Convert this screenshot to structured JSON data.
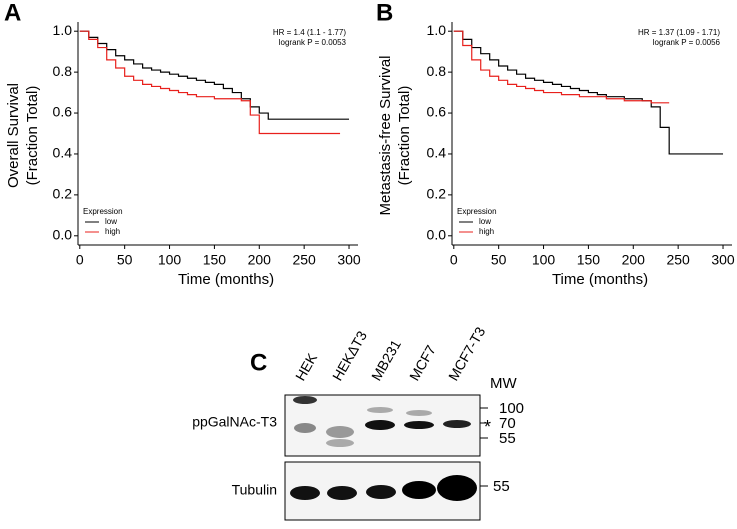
{
  "chart_data": [
    {
      "type": "step",
      "panel": "A",
      "ylabel": [
        "Overall Survival",
        "(Fraction Total)"
      ],
      "xlabel": "Time (months)",
      "annotations": [
        "HR = 1.4 (1.1 - 1.77)",
        "logrank P = 0.0053"
      ],
      "legend_title": "Expression",
      "legend": "lower left",
      "x": [
        0,
        10,
        20,
        30,
        40,
        50,
        60,
        70,
        80,
        90,
        100,
        110,
        120,
        130,
        140,
        150,
        160,
        170,
        180,
        190,
        200,
        210,
        220,
        230,
        240,
        250,
        260,
        270,
        280,
        290,
        300
      ],
      "series": [
        {
          "name": "low",
          "color": "#000000",
          "values": [
            1.0,
            0.97,
            0.94,
            0.91,
            0.88,
            0.86,
            0.84,
            0.82,
            0.81,
            0.8,
            0.79,
            0.78,
            0.77,
            0.76,
            0.75,
            0.74,
            0.72,
            0.7,
            0.67,
            0.63,
            0.6,
            0.57,
            0.57,
            0.57,
            0.57,
            0.57,
            0.57,
            0.57,
            0.57,
            0.57,
            0.57
          ]
        },
        {
          "name": "high",
          "color": "#e8201c",
          "values": [
            1.0,
            0.96,
            0.92,
            0.86,
            0.82,
            0.78,
            0.76,
            0.74,
            0.73,
            0.72,
            0.71,
            0.7,
            0.69,
            0.68,
            0.68,
            0.67,
            0.67,
            0.67,
            0.66,
            0.59,
            0.5,
            0.5,
            0.5,
            0.5,
            0.5,
            0.5,
            0.5,
            0.5,
            0.5,
            0.5,
            null
          ]
        }
      ],
      "xlim": [
        -2,
        310
      ],
      "ylim": [
        -0.045,
        1.045
      ],
      "xticks": [
        0,
        50,
        100,
        150,
        200,
        250,
        300
      ],
      "yticks": [
        {
          "value": 0,
          "label": "0.0"
        },
        0.2,
        0.4,
        0.6,
        0.8,
        {
          "value": 1,
          "label": "1.0"
        }
      ]
    },
    {
      "type": "step",
      "panel": "B",
      "ylabel": [
        "Metastasis-free Survival",
        "(Fraction Total)"
      ],
      "xlabel": "Time (months)",
      "annotations": [
        "HR = 1.37 (1.09 - 1.71)",
        "logrank P = 0.0056"
      ],
      "legend_title": "Expression",
      "legend": "lower left",
      "x": [
        0,
        10,
        20,
        30,
        40,
        50,
        60,
        70,
        80,
        90,
        100,
        110,
        120,
        130,
        140,
        150,
        160,
        170,
        180,
        190,
        200,
        210,
        220,
        230,
        240,
        250,
        260,
        270,
        280,
        290,
        300
      ],
      "series": [
        {
          "name": "low",
          "color": "#000000",
          "values": [
            1.0,
            0.96,
            0.92,
            0.89,
            0.86,
            0.83,
            0.81,
            0.79,
            0.77,
            0.76,
            0.75,
            0.74,
            0.73,
            0.72,
            0.71,
            0.7,
            0.69,
            0.68,
            0.68,
            0.67,
            0.67,
            0.66,
            0.63,
            0.53,
            0.4,
            0.4,
            0.4,
            0.4,
            0.4,
            0.4,
            0.4
          ]
        },
        {
          "name": "high",
          "color": "#e8201c",
          "values": [
            1.0,
            0.93,
            0.86,
            0.81,
            0.78,
            0.76,
            0.74,
            0.73,
            0.72,
            0.71,
            0.7,
            0.7,
            0.69,
            0.69,
            0.68,
            0.68,
            0.68,
            0.67,
            0.67,
            0.66,
            0.66,
            0.66,
            0.65,
            0.65,
            0.65,
            null,
            null,
            null,
            null,
            null,
            null
          ]
        }
      ],
      "xlim": [
        -2,
        310
      ],
      "ylim": [
        -0.045,
        1.045
      ],
      "xticks": [
        0,
        50,
        100,
        150,
        200,
        250,
        300
      ],
      "yticks": [
        {
          "value": 0,
          "label": "0.0"
        },
        0.2,
        0.4,
        0.6,
        0.8,
        {
          "value": 1,
          "label": "1.0"
        }
      ]
    }
  ],
  "blot": {
    "panel": "C",
    "lanes": [
      "HEK",
      "HEKΔT3",
      "MB231",
      "MCF7",
      "MCF7-T3"
    ],
    "mw_title": "MW",
    "markers": [
      "100",
      "70",
      "55"
    ],
    "star": "*",
    "rows": [
      "ppGalNAc-T3",
      "Tubulin"
    ],
    "tubulin_marker": "55"
  }
}
